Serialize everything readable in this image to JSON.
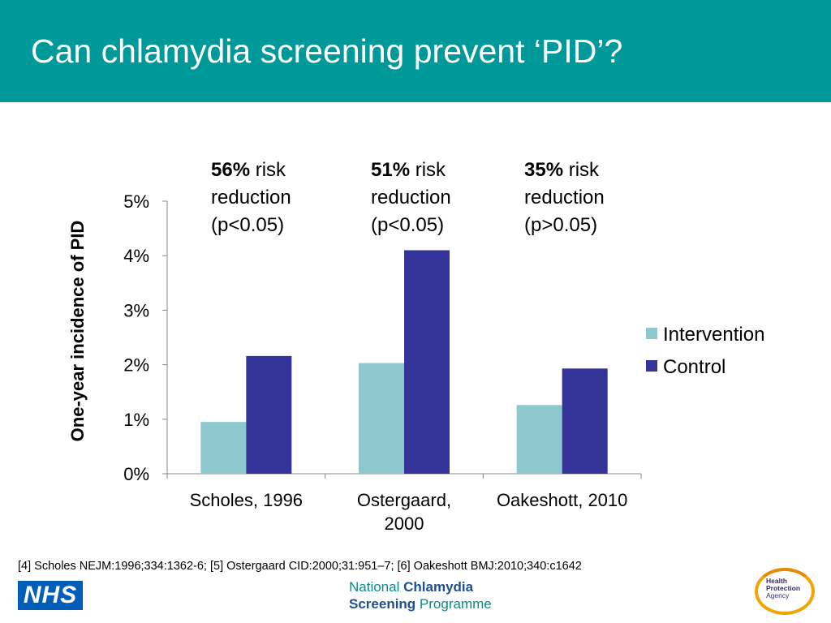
{
  "header": {
    "title": "Can chlamydia screening prevent ‘PID’?",
    "background": "#009999"
  },
  "chart_data": {
    "type": "bar",
    "categories": [
      "Scholes, 1996",
      "Ostergaard,\n2000",
      "Oakeshott, 2010"
    ],
    "series": [
      {
        "name": "Intervention",
        "color": "#8DC8CF",
        "values": [
          0.95,
          2.03,
          1.26
        ]
      },
      {
        "name": "Control",
        "color": "#333399",
        "values": [
          2.16,
          4.1,
          1.93
        ]
      }
    ],
    "ylabel": "One-year incidence of PID",
    "ylim": [
      0,
      5
    ],
    "yticks": [
      "0%",
      "1%",
      "2%",
      "3%",
      "4%",
      "5%"
    ],
    "legend_position": "right",
    "grid": false,
    "annotations": [
      {
        "bold": "56%",
        "text1": " risk",
        "text2": "reduction",
        "text3": "(p<0.05)"
      },
      {
        "bold": "51%",
        "text1": " risk",
        "text2": "reduction",
        "text3": "(p<0.05)"
      },
      {
        "bold": "35%",
        "text1": " risk",
        "text2": "reduction",
        "text3": "(p>0.05)"
      }
    ]
  },
  "footer": {
    "references": "[4] Scholes NEJM:1996;334:1362-6; [5] Ostergaard CID:2000;31:951–7; [6] Oakeshott BMJ:2010;340:c1642",
    "nhs_logo": "NHS",
    "ncsp_logo": {
      "line1_a": "National ",
      "line1_b": "Chlamydia",
      "line2_a": "Screening",
      "line2_b": " Programme"
    },
    "hpa_logo": {
      "line1": "Health",
      "line2": "Protection",
      "line3": "Agency"
    }
  }
}
